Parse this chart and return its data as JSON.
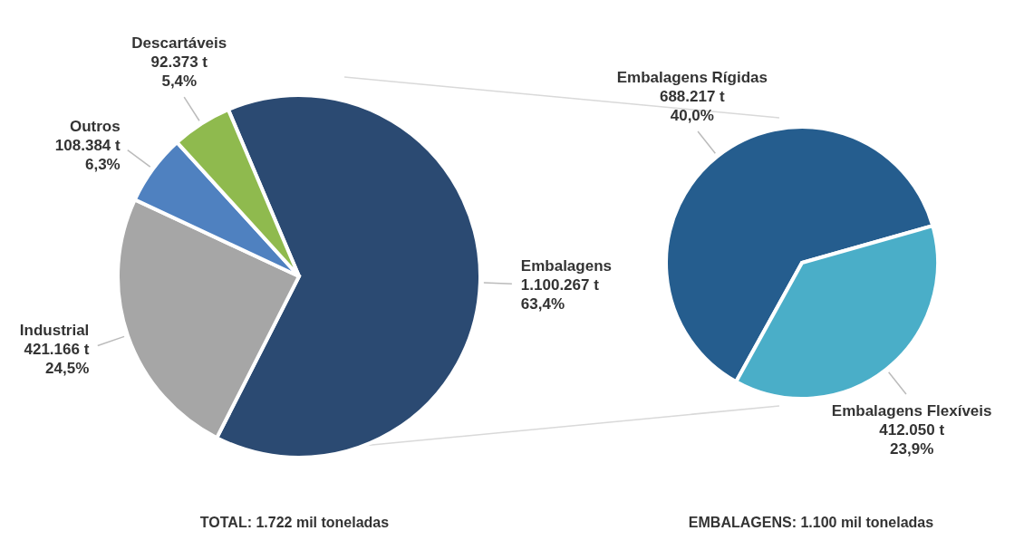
{
  "chart_data": [
    {
      "type": "pie",
      "categories": [
        "Embalagens",
        "Industrial",
        "Outros",
        "Descartáveis"
      ],
      "values": [
        1100267,
        421166,
        108384,
        92373
      ],
      "colors": [
        "#2b4a72",
        "#a6a6a6",
        "#4f81c0",
        "#8fba4e"
      ],
      "value_labels": [
        "1.100.267 t\n63,4%",
        "421.166 t\n24,5%",
        "108.384 t\n6,3%",
        "92.373 t\n5,4%"
      ],
      "annotations": [
        "TOTAL: 1.722 mil toneladas"
      ]
    },
    {
      "type": "pie",
      "categories": [
        "Embalagens Rígidas",
        "Embalagens Flexíveis"
      ],
      "values": [
        688217,
        412050
      ],
      "colors": [
        "#255d8e",
        "#4aaec8"
      ],
      "value_labels": [
        "688.217 t\n40,0%",
        "412.050 t\n23,9%"
      ],
      "annotations": [
        "EMBALAGENS: 1.100 mil toneladas"
      ]
    }
  ]
}
